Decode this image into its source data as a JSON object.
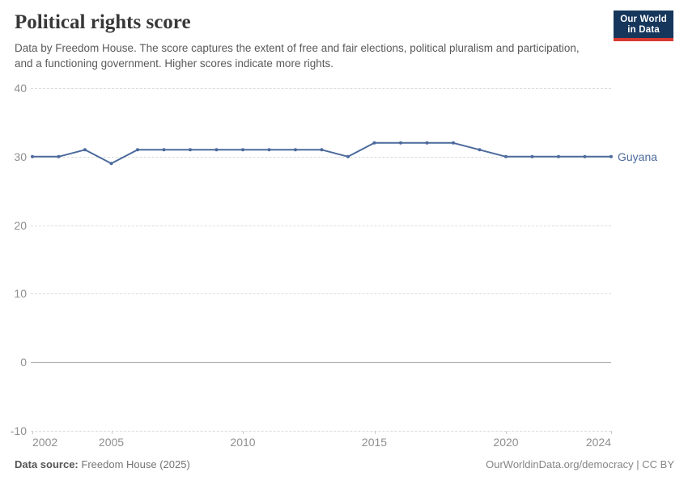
{
  "header": {
    "title": "Political rights score",
    "subtitle": "Data by Freedom House. The score captures the extent of free and fair elections, political pluralism and participation, and a functioning government. Higher scores indicate more rights.",
    "logo": {
      "line1": "Our World",
      "line2": "in Data"
    }
  },
  "chart_data": {
    "type": "line",
    "title": "Political rights score",
    "x": [
      2002,
      2003,
      2004,
      2005,
      2006,
      2007,
      2008,
      2009,
      2010,
      2011,
      2012,
      2013,
      2014,
      2015,
      2016,
      2017,
      2018,
      2019,
      2020,
      2021,
      2022,
      2023,
      2024
    ],
    "series": [
      {
        "name": "Guyana",
        "color": "#4c6a9c",
        "values": [
          30,
          30,
          31,
          29,
          31,
          31,
          31,
          31,
          31,
          31,
          31,
          31,
          30,
          32,
          32,
          32,
          32,
          31,
          30,
          30,
          30,
          30,
          30
        ]
      }
    ],
    "xticks": [
      2002,
      2005,
      2010,
      2015,
      2020,
      2024
    ],
    "xtick_labels": [
      "2002",
      "2005",
      "2010",
      "2015",
      "2020",
      "2024"
    ],
    "yticks": [
      40,
      30,
      20,
      10,
      0,
      -10
    ],
    "ytick_labels": [
      "40",
      "30",
      "20",
      "10",
      "0",
      "-10"
    ],
    "xlim": [
      2002,
      2024
    ],
    "ylim": [
      -10,
      40
    ],
    "grid": "horizontal dashed, solid line at zero",
    "legend_position": "end-of-line label"
  },
  "footer": {
    "source_label": "Data source:",
    "source_value": "Freedom House (2025)",
    "right_text": "OurWorldinData.org/democracy | CC BY"
  },
  "colors": {
    "line": "#4c6a9c",
    "logo_bg": "#16365c",
    "logo_accent": "#d7382f",
    "gridline": "#dcdcdc",
    "zero_line": "#b0b0b0",
    "axis_text": "#8f8f8f"
  }
}
